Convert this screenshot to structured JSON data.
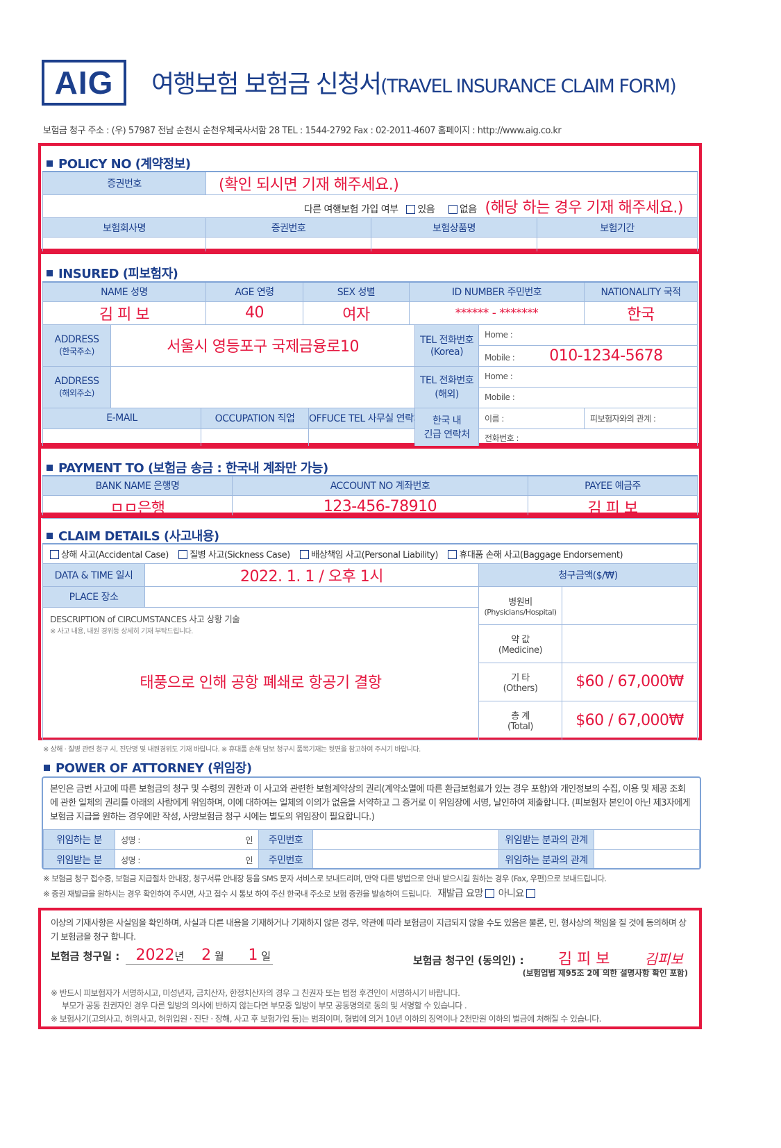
{
  "header": {
    "logo": "AIG",
    "title_ko": "여행보험 보험금 신청서",
    "title_en": "(TRAVEL INSURANCE CLAIM FORM)",
    "address_line": "보험금 청구 주소 : (우) 57987 전남 순천시 순천우체국사서함 28    TEL : 1544-2792    Fax : 02-2011-4607    홈페이지 : http://www.aig.co.kr"
  },
  "policy": {
    "title": "POLICY NO (계약정보)",
    "cert_label": "증권번호",
    "cert_value": "(확인 되시면 기재 해주세요.)",
    "other_ins_label": "다른 여행보험 가입 여부",
    "opt_yes": "있음",
    "opt_no": "없음",
    "other_ins_note": "(해당 하는 경우 기재 해주세요.)",
    "cols": [
      "보험회사명",
      "증권번호",
      "보험상품명",
      "보험기간"
    ]
  },
  "insured": {
    "title": "INSURED (피보험자)",
    "cols": [
      "NAME 성명",
      "AGE 연령",
      "SEX 성별",
      "ID NUMBER 주민번호",
      "NATIONALITY 국적"
    ],
    "values": [
      "김 피 보",
      "40",
      "여자",
      "****** - *******",
      "한국"
    ],
    "address_kr_label": [
      "ADDRESS",
      "(한국주소)"
    ],
    "address_kr_value": "서울시 영등포구 국제금융로10",
    "address_ab_label": [
      "ADDRESS",
      "(해외주소)"
    ],
    "tel_kr_label": [
      "TEL 전화번호",
      "(Korea)"
    ],
    "tel_ab_label": [
      "TEL 전화번호",
      "(해외)"
    ],
    "home": "Home :",
    "mobile": "Mobile :",
    "mobile_kr_value": "010-1234-5678",
    "email": "E-MAIL",
    "occupation": "OCCUPATION 직업",
    "office_tel": "OFFUCE TEL 사무실 연락처",
    "emergency_label": [
      "한국 내",
      "긴급 연락처"
    ],
    "em_name": "이름 :",
    "em_relation": "피보험자와의 관계 :",
    "em_phone": "전화번호 :"
  },
  "payment": {
    "title": "PAYMENT TO (보험금 송금 : 한국내 계좌만 가능)",
    "cols": [
      "BANK NAME 은행명",
      "ACCOUNT NO 계좌번호",
      "PAYEE 예금주"
    ],
    "values": [
      "ㅁㅁ은행",
      "123-456-78910",
      "김 피 보"
    ]
  },
  "claim": {
    "title": "CLAIM DETAILS (사고내용)",
    "types": [
      "상해 사고(Accidental Case)",
      "질병 사고(Sickness Case)",
      "배상책임 사고(Personal Liability)",
      "휴대품 손해 사고(Baggage Endorsement)"
    ],
    "date_label": "DATA & TIME 일시",
    "date_value": "2022. 1. 1 / 오후 1시",
    "place_label": "PLACE 장소",
    "desc_label": "DESCRIPTION of CIRCUMSTANCES 사고 상황 기술",
    "desc_note": "※ 사고 내용, 내원 경위등 상세히 기재 부탁드립니다.",
    "desc_value": "태풍으로 인해 공항 폐쇄로 항공기 결항",
    "amount_header": "청구금액($/₩)",
    "amounts": [
      {
        "label": [
          "병원비",
          "(Physicians/Hospital)"
        ],
        "value": ""
      },
      {
        "label": [
          "약 값",
          "(Medicine)"
        ],
        "value": ""
      },
      {
        "label": [
          "기 타",
          "(Others)"
        ],
        "value": "$60 / 67,000₩"
      },
      {
        "label": [
          "총 계",
          "(Total)"
        ],
        "value": "$60 / 67,000₩"
      }
    ]
  },
  "claim_note": "※ 상해 · 질병 관련 청구 시, 진단명 및 내원경위도 기재 바랍니다.    ※ 휴대품 손해 담보 청구시 품목기재는 뒷면을 참고하여 주시기 바랍니다.",
  "poa": {
    "title": "POWER OF ATTORNEY (위임장)",
    "text": "본인은 금번 사고에 따른 보험금의 청구 및 수령의 권한과 이 사고와 관련한 보험계약상의 권리(계약소멸에 따른 환급보험료가 있는 경우 포함)와 개인정보의 수집, 이용 및 제공 조회에 관한 일체의 권리를 아래의 사람에게 위임하며, 이에 대하여는 일체의 이의가 없음을 서약하고 그 증거로 이 위임장에 서명, 날인하여 제출합니다. (피보험자 본인이 아닌 제3자에게 보험금 지급을 원하는 경우에만 작성, 사망보험금 청구 시에는 별도의 위임장이 필요합니다.)",
    "rows": [
      {
        "role": "위임하는 분",
        "name": "성명 :",
        "seal": "인",
        "id": "주민번호",
        "relation": "위임받는 분과의 관계"
      },
      {
        "role": "위임받는 분",
        "name": "성명 :",
        "seal": "인",
        "id": "주민번호",
        "relation": "위임하는 분과의 관계"
      }
    ]
  },
  "notes": [
    "※ 보험금 청구 접수증, 보험금 지급절차 안내장, 청구서류 안내장 등을 SMS 문자 서비스로 보내드리며, 만약 다른 방법으로 안내 받으시길 원하는 경우 (Fax, 우편)으로 보내드립니다.",
    "※ 증권 재발급을 원하시는 경우 확인하여 주시면, 사고 접수 시 통보 하여 주신 한국내 주소로 보험 증권을 발송하여 드립니다."
  ],
  "reissue": {
    "label": "재발급 요망",
    "no": "아니요"
  },
  "consent": {
    "text": "이상의 기재사항은 사실임을 확인하며, 사실과 다른 내용을 기재하거나 기재하지 않은 경우, 약관에 따라 보험금이 지급되지 않을 수도 있음은 물론, 민, 형사상의 책임을 질 것에 동의하며 상기 보험금을 청구 합니다.",
    "date_label": "보험금 청구일 :",
    "year": "2022",
    "year_unit": "년",
    "month": "2",
    "month_unit": "월",
    "day": "1",
    "day_unit": "일",
    "claimant_label": "보험금 청구인 (동의인) :",
    "claimant": "김 피 보",
    "signature": "김피보",
    "law_note": "(보험업법 제95조 2에 의한 설명사항 확인 포함)",
    "warnings": [
      "※ 반드시 피보험자가 서명하시고, 미성년자, 금치산자, 한정치산자의 경우 그 친권자 또는 법정 후견인이 서명하시기 바랍니다.",
      "부모가 공동 친권자인 경우 다른 일방의 의사에 반하지 않는다면 부모중 일방이 부모 공동명의로 동의 및 서명할 수 있습니다 .",
      "※ 보험사기(고의사고, 허위사고, 허위입원 · 진단 · 장해, 사고 후 보험가입 등)는 범죄이며, 형법에 의거 10년 이하의 징역이나 2천만원 이하의 벌금에 처해질 수 있습니다."
    ]
  },
  "colors": {
    "brand": "#1c3f8c",
    "highlight": "#e5173f",
    "cell": "#c9ddf2"
  }
}
